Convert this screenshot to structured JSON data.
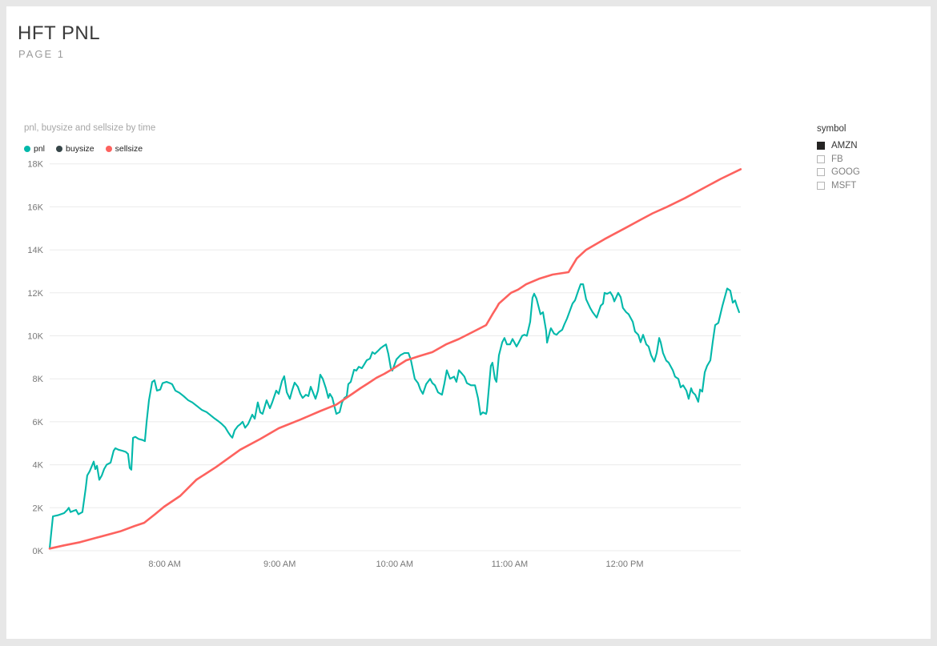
{
  "page": {
    "title": "HFT PNL",
    "subtitle": "PAGE 1"
  },
  "chart": {
    "title": "pnl, buysize and sellsize by time",
    "legend": [
      {
        "label": "pnl",
        "color": "#01B8AA"
      },
      {
        "label": "buysize",
        "color": "#374649"
      },
      {
        "label": "sellsize",
        "color": "#FD625E"
      }
    ]
  },
  "slicer": {
    "title": "symbol",
    "options": [
      {
        "label": "AMZN",
        "checked": true
      },
      {
        "label": "FB",
        "checked": false
      },
      {
        "label": "GOOG",
        "checked": false
      },
      {
        "label": "MSFT",
        "checked": false
      }
    ]
  },
  "chart_data": {
    "type": "line",
    "title": "pnl, buysize and sellsize by time",
    "x_unit": "minutes after 7:00 AM",
    "y_unit": "thousands (K)",
    "ylim": [
      0,
      18
    ],
    "y_tick_labels": [
      "0K",
      "2K",
      "4K",
      "6K",
      "8K",
      "10K",
      "12K",
      "14K",
      "16K",
      "18K"
    ],
    "x_ticks": [
      {
        "minute": 60,
        "label": "8:00 AM"
      },
      {
        "minute": 120,
        "label": "9:00 AM"
      },
      {
        "minute": 180,
        "label": "10:00 AM"
      },
      {
        "minute": 240,
        "label": "11:00 AM"
      },
      {
        "minute": 300,
        "label": "12:00 PM"
      }
    ],
    "grid": true,
    "legend_position": "top-left",
    "series": [
      {
        "name": "pnl",
        "color": "#01B8AA",
        "points": [
          [
            0,
            0.1
          ],
          [
            0.8,
            0.8
          ],
          [
            1.7,
            1.6
          ],
          [
            4.2,
            1.65
          ],
          [
            7.5,
            1.75
          ],
          [
            9.2,
            1.9
          ],
          [
            10,
            2
          ],
          [
            10.9,
            1.8
          ],
          [
            12.5,
            1.86
          ],
          [
            13.8,
            1.9
          ],
          [
            15,
            1.7
          ],
          [
            17.1,
            1.8
          ],
          [
            18.8,
            2.9
          ],
          [
            19.6,
            3.5
          ],
          [
            20.9,
            3.7
          ],
          [
            23,
            4.15
          ],
          [
            23.8,
            3.8
          ],
          [
            24.7,
            3.95
          ],
          [
            25.9,
            3.3
          ],
          [
            27.2,
            3.5
          ],
          [
            28.4,
            3.8
          ],
          [
            29.7,
            4
          ],
          [
            31.8,
            4.1
          ],
          [
            33.4,
            4.65
          ],
          [
            34.3,
            4.77
          ],
          [
            35.9,
            4.7
          ],
          [
            38,
            4.65
          ],
          [
            39.7,
            4.6
          ],
          [
            40.9,
            4.5
          ],
          [
            41.8,
            3.85
          ],
          [
            42.6,
            3.77
          ],
          [
            43.5,
            5.25
          ],
          [
            44.7,
            5.3
          ],
          [
            46.4,
            5.2
          ],
          [
            48.5,
            5.15
          ],
          [
            49.7,
            5.1
          ],
          [
            50.6,
            6
          ],
          [
            51.8,
            7
          ],
          [
            53.5,
            7.85
          ],
          [
            54.7,
            7.93
          ],
          [
            56,
            7.45
          ],
          [
            57.7,
            7.5
          ],
          [
            58.9,
            7.8
          ],
          [
            61,
            7.86
          ],
          [
            62.7,
            7.8
          ],
          [
            63.9,
            7.75
          ],
          [
            65.6,
            7.45
          ],
          [
            67.7,
            7.35
          ],
          [
            69.8,
            7.2
          ],
          [
            72.3,
            7
          ],
          [
            74.4,
            6.9
          ],
          [
            77.3,
            6.7
          ],
          [
            79.4,
            6.55
          ],
          [
            81.9,
            6.45
          ],
          [
            84,
            6.3
          ],
          [
            86.1,
            6.15
          ],
          [
            87.7,
            6.05
          ],
          [
            89.8,
            5.9
          ],
          [
            91.5,
            5.75
          ],
          [
            93.2,
            5.5
          ],
          [
            94.4,
            5.35
          ],
          [
            95.3,
            5.26
          ],
          [
            96.5,
            5.6
          ],
          [
            98.2,
            5.8
          ],
          [
            99.4,
            5.88
          ],
          [
            100.7,
            6
          ],
          [
            102,
            5.72
          ],
          [
            103.6,
            5.9
          ],
          [
            105.7,
            6.33
          ],
          [
            107,
            6.14
          ],
          [
            108.6,
            6.9
          ],
          [
            109.9,
            6.44
          ],
          [
            111.1,
            6.37
          ],
          [
            113.2,
            7
          ],
          [
            114.9,
            6.63
          ],
          [
            116.1,
            6.9
          ],
          [
            118.2,
            7.45
          ],
          [
            119.5,
            7.3
          ],
          [
            121.2,
            7.9
          ],
          [
            122.4,
            8.12
          ],
          [
            123.7,
            7.37
          ],
          [
            125.3,
            7.07
          ],
          [
            126.6,
            7.49
          ],
          [
            127.8,
            7.82
          ],
          [
            129.5,
            7.63
          ],
          [
            130.8,
            7.3
          ],
          [
            132,
            7.11
          ],
          [
            133.7,
            7.26
          ],
          [
            135,
            7.19
          ],
          [
            136.2,
            7.63
          ],
          [
            137.9,
            7.26
          ],
          [
            138.7,
            7.07
          ],
          [
            140,
            7.45
          ],
          [
            141.2,
            8.19
          ],
          [
            142.5,
            8
          ],
          [
            144.1,
            7.56
          ],
          [
            145.4,
            7.11
          ],
          [
            146.2,
            7.3
          ],
          [
            147.5,
            7.11
          ],
          [
            148.3,
            6.82
          ],
          [
            149.6,
            6.37
          ],
          [
            151.3,
            6.45
          ],
          [
            152.5,
            6.89
          ],
          [
            153.8,
            7.11
          ],
          [
            155,
            7.19
          ],
          [
            155.8,
            7.75
          ],
          [
            157.1,
            7.86
          ],
          [
            158.8,
            8.42
          ],
          [
            160,
            8.38
          ],
          [
            161.3,
            8.56
          ],
          [
            162.9,
            8.49
          ],
          [
            164.2,
            8.68
          ],
          [
            165.4,
            8.86
          ],
          [
            167.1,
            8.94
          ],
          [
            168.4,
            9.24
          ],
          [
            169.6,
            9.16
          ],
          [
            171.3,
            9.3
          ],
          [
            172.6,
            9.42
          ],
          [
            173.8,
            9.5
          ],
          [
            175.5,
            9.6
          ],
          [
            176.7,
            9.16
          ],
          [
            178,
            8.49
          ],
          [
            178.8,
            8.38
          ],
          [
            180.9,
            8.9
          ],
          [
            183,
            9.1
          ],
          [
            185.1,
            9.2
          ],
          [
            187.2,
            9.2
          ],
          [
            188.4,
            8.9
          ],
          [
            190.5,
            8
          ],
          [
            192.2,
            7.8
          ],
          [
            193.4,
            7.5
          ],
          [
            194.7,
            7.3
          ],
          [
            196.4,
            7.75
          ],
          [
            198.5,
            8
          ],
          [
            199.7,
            7.8
          ],
          [
            201,
            7.7
          ],
          [
            202.6,
            7.37
          ],
          [
            204.7,
            7.26
          ],
          [
            206,
            7.8
          ],
          [
            207.2,
            8.4
          ],
          [
            208.9,
            8
          ],
          [
            211,
            8.1
          ],
          [
            212.2,
            7.86
          ],
          [
            213.5,
            8.4
          ],
          [
            215.2,
            8.23
          ],
          [
            216.4,
            8.1
          ],
          [
            217.7,
            7.8
          ],
          [
            219.8,
            7.7
          ],
          [
            221.9,
            7.7
          ],
          [
            223.5,
            7.1
          ],
          [
            224.8,
            6.33
          ],
          [
            226,
            6.44
          ],
          [
            227.7,
            6.37
          ],
          [
            228.1,
            6.5
          ],
          [
            230.2,
            8.6
          ],
          [
            231,
            8.75
          ],
          [
            232.3,
            8
          ],
          [
            233.1,
            7.86
          ],
          [
            234.4,
            9.1
          ],
          [
            236.1,
            9.7
          ],
          [
            237.3,
            9.9
          ],
          [
            238.6,
            9.6
          ],
          [
            240.2,
            9.6
          ],
          [
            241.5,
            9.85
          ],
          [
            243.6,
            9.5
          ],
          [
            244.8,
            9.7
          ],
          [
            246.5,
            10
          ],
          [
            247.7,
            10.05
          ],
          [
            249,
            10
          ],
          [
            250.7,
            10.65
          ],
          [
            251.9,
            11.77
          ],
          [
            252.8,
            11.96
          ],
          [
            254,
            11.73
          ],
          [
            255.3,
            11.28
          ],
          [
            256.1,
            11
          ],
          [
            257.4,
            11.1
          ],
          [
            259,
            10.24
          ],
          [
            259.5,
            9.68
          ],
          [
            261.1,
            10.24
          ],
          [
            261.5,
            10.35
          ],
          [
            263.2,
            10.1
          ],
          [
            264.5,
            10.05
          ],
          [
            265.7,
            10.17
          ],
          [
            267.4,
            10.28
          ],
          [
            268.6,
            10.54
          ],
          [
            269.9,
            10.8
          ],
          [
            272.8,
            11.5
          ],
          [
            274.1,
            11.65
          ],
          [
            275.8,
            12.1
          ],
          [
            277,
            12.4
          ],
          [
            278.3,
            12.4
          ],
          [
            279.9,
            11.7
          ],
          [
            282,
            11.3
          ],
          [
            283.3,
            11.1
          ],
          [
            285.4,
            10.85
          ],
          [
            287.5,
            11.4
          ],
          [
            288.7,
            11.5
          ],
          [
            289.5,
            12
          ],
          [
            290.8,
            11.95
          ],
          [
            292.5,
            12.03
          ],
          [
            293.7,
            11.85
          ],
          [
            294.6,
            11.6
          ],
          [
            296.6,
            12
          ],
          [
            297.9,
            11.8
          ],
          [
            299.1,
            11.3
          ],
          [
            300.8,
            11.1
          ],
          [
            302.1,
            11
          ],
          [
            304.2,
            10.65
          ],
          [
            305.4,
            10.2
          ],
          [
            307.1,
            10.05
          ],
          [
            308.3,
            9.7
          ],
          [
            309.6,
            10.05
          ],
          [
            311.3,
            9.6
          ],
          [
            312.5,
            9.5
          ],
          [
            313.8,
            9.1
          ],
          [
            315.4,
            8.8
          ],
          [
            316.7,
            9.2
          ],
          [
            318,
            9.9
          ],
          [
            318.8,
            9.7
          ],
          [
            320,
            9.2
          ],
          [
            321.7,
            8.85
          ],
          [
            323,
            8.75
          ],
          [
            325.1,
            8.4
          ],
          [
            326.3,
            8.1
          ],
          [
            328,
            8
          ],
          [
            329.2,
            7.6
          ],
          [
            330.5,
            7.7
          ],
          [
            332.2,
            7.45
          ],
          [
            333.4,
            7.07
          ],
          [
            334.7,
            7.56
          ],
          [
            335.5,
            7.37
          ],
          [
            336.8,
            7.26
          ],
          [
            338.4,
            6.93
          ],
          [
            339.3,
            7.5
          ],
          [
            340.5,
            7.4
          ],
          [
            341.8,
            8.3
          ],
          [
            343,
            8.6
          ],
          [
            344.7,
            8.86
          ],
          [
            345.9,
            9.7
          ],
          [
            347.2,
            10.5
          ],
          [
            348.9,
            10.6
          ],
          [
            351,
            11.4
          ],
          [
            353.5,
            12.2
          ],
          [
            355.1,
            12.1
          ],
          [
            356.4,
            11.54
          ],
          [
            357.6,
            11.65
          ],
          [
            358.5,
            11.4
          ],
          [
            359.7,
            11.1
          ]
        ]
      },
      {
        "name": "buysize",
        "color": "#374649",
        "note": "no separate line visible in plot (hidden behind sellsize line)",
        "points": []
      },
      {
        "name": "sellsize",
        "color": "#FD625E",
        "points": [
          [
            0,
            0.1
          ],
          [
            7.5,
            0.25
          ],
          [
            15.9,
            0.4
          ],
          [
            24.2,
            0.6
          ],
          [
            32.6,
            0.8
          ],
          [
            36.8,
            0.9
          ],
          [
            44.3,
            1.15
          ],
          [
            49.3,
            1.3
          ],
          [
            55,
            1.7
          ],
          [
            59.7,
            2.05
          ],
          [
            68.1,
            2.55
          ],
          [
            76.5,
            3.3
          ],
          [
            86.9,
            3.9
          ],
          [
            99.4,
            4.7
          ],
          [
            109.9,
            5.2
          ],
          [
            119.5,
            5.7
          ],
          [
            130.8,
            6.1
          ],
          [
            141.2,
            6.5
          ],
          [
            149.6,
            6.8
          ],
          [
            157.9,
            7.3
          ],
          [
            162.1,
            7.56
          ],
          [
            166.3,
            7.8
          ],
          [
            170.5,
            8.05
          ],
          [
            174.6,
            8.23
          ],
          [
            178.8,
            8.45
          ],
          [
            186,
            8.86
          ],
          [
            192.6,
            9.05
          ],
          [
            199.7,
            9.24
          ],
          [
            206.8,
            9.6
          ],
          [
            213.5,
            9.85
          ],
          [
            220.6,
            10.17
          ],
          [
            227.7,
            10.5
          ],
          [
            231,
            11
          ],
          [
            233.1,
            11.3
          ],
          [
            234.4,
            11.5
          ],
          [
            240.7,
            12
          ],
          [
            244.4,
            12.15
          ],
          [
            248.6,
            12.4
          ],
          [
            255.3,
            12.65
          ],
          [
            262.4,
            12.85
          ],
          [
            270.7,
            12.96
          ],
          [
            275,
            13.6
          ],
          [
            279.9,
            14
          ],
          [
            289.5,
            14.5
          ],
          [
            300,
            15
          ],
          [
            308.3,
            15.4
          ],
          [
            314.6,
            15.7
          ],
          [
            322.1,
            16
          ],
          [
            331.3,
            16.4
          ],
          [
            339.7,
            16.8
          ],
          [
            350.1,
            17.3
          ],
          [
            360.5,
            17.75
          ]
        ]
      }
    ]
  }
}
